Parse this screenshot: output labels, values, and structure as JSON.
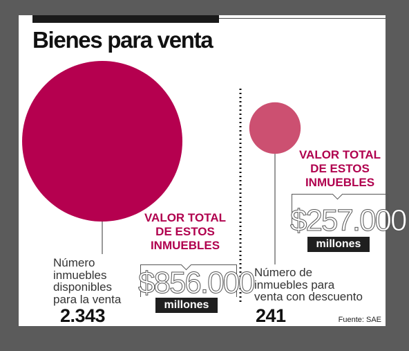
{
  "chart_data": {
    "type": "bubble",
    "title": "Bienes para venta",
    "source": "Fuente: SAE",
    "series": [
      {
        "label": "Número inmuebles disponibles para la venta",
        "count": 2343,
        "count_label": "2.343",
        "value_title": "VALOR TOTAL DE ESTOS INMUEBLES",
        "value": 856000,
        "value_label": "$856.000",
        "value_unit": "millones",
        "color": "#b5004f"
      },
      {
        "label": "Número de inmuebles para venta con descuento",
        "count": 241,
        "count_label": "241",
        "value_title": "VALOR TOTAL DE ESTOS INMUEBLES",
        "value": 257000,
        "value_label": "$257.000",
        "value_unit": "millones",
        "color": "#cc5071"
      }
    ]
  },
  "panel_left": {
    "label": "Número\ninmuebles\ndisponibles\npara la venta",
    "value_title": "VALOR TOTAL\nDE ESTOS\nINMUEBLES"
  },
  "panel_right": {
    "label": "Número de\ninmuebles para\nventa con descuento",
    "value_title": "VALOR TOTAL\nDE ESTOS\nINMUEBLES"
  }
}
